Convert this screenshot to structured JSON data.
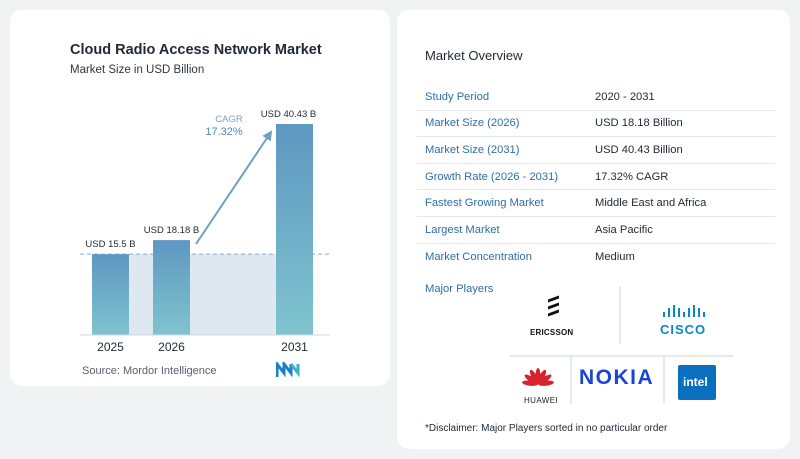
{
  "chart_data": {
    "type": "bar",
    "title": "Cloud Radio Access Network Market",
    "subtitle": "Market Size in USD Billion",
    "categories": [
      "2025",
      "2026",
      "2031"
    ],
    "values": [
      15.5,
      18.18,
      40.43
    ],
    "data_labels": [
      "USD 15.5 B",
      "USD 18.18 B",
      "USD 40.43 B"
    ],
    "cagr_label": "CAGR",
    "cagr_value": "17.32%",
    "ylim": [
      0,
      40.43
    ],
    "grid": false,
    "colors": {
      "bar_top": "#5f97c1",
      "bar_bottom": "#7fc4cf",
      "arrow": "#6f9fc4",
      "shade": "#dde8f1"
    }
  },
  "source": "Source:  Mordor Intelligence",
  "overview": {
    "title": "Market Overview",
    "rows": [
      {
        "label": "Study Period",
        "value": "2020 - 2031"
      },
      {
        "label": "Market Size (2026)",
        "value": "USD 18.18 Billion"
      },
      {
        "label": "Market Size (2031)",
        "value": "USD 40.43 Billion"
      },
      {
        "label": "Growth Rate (2026 - 2031)",
        "value": "17.32% CAGR"
      },
      {
        "label": "Fastest Growing Market",
        "value": "Middle East and Africa"
      },
      {
        "label": "Largest Market",
        "value": "Asia Pacific"
      },
      {
        "label": "Market Concentration",
        "value": "Medium"
      }
    ]
  },
  "players": {
    "title": "Major Players",
    "ericsson": "ERICSSON",
    "cisco": "CISCO",
    "huawei": "HUAWEI",
    "nokia": "NOKIA",
    "intel": "intel",
    "disclaimer": "*Disclaimer: Major Players sorted in no particular order"
  }
}
